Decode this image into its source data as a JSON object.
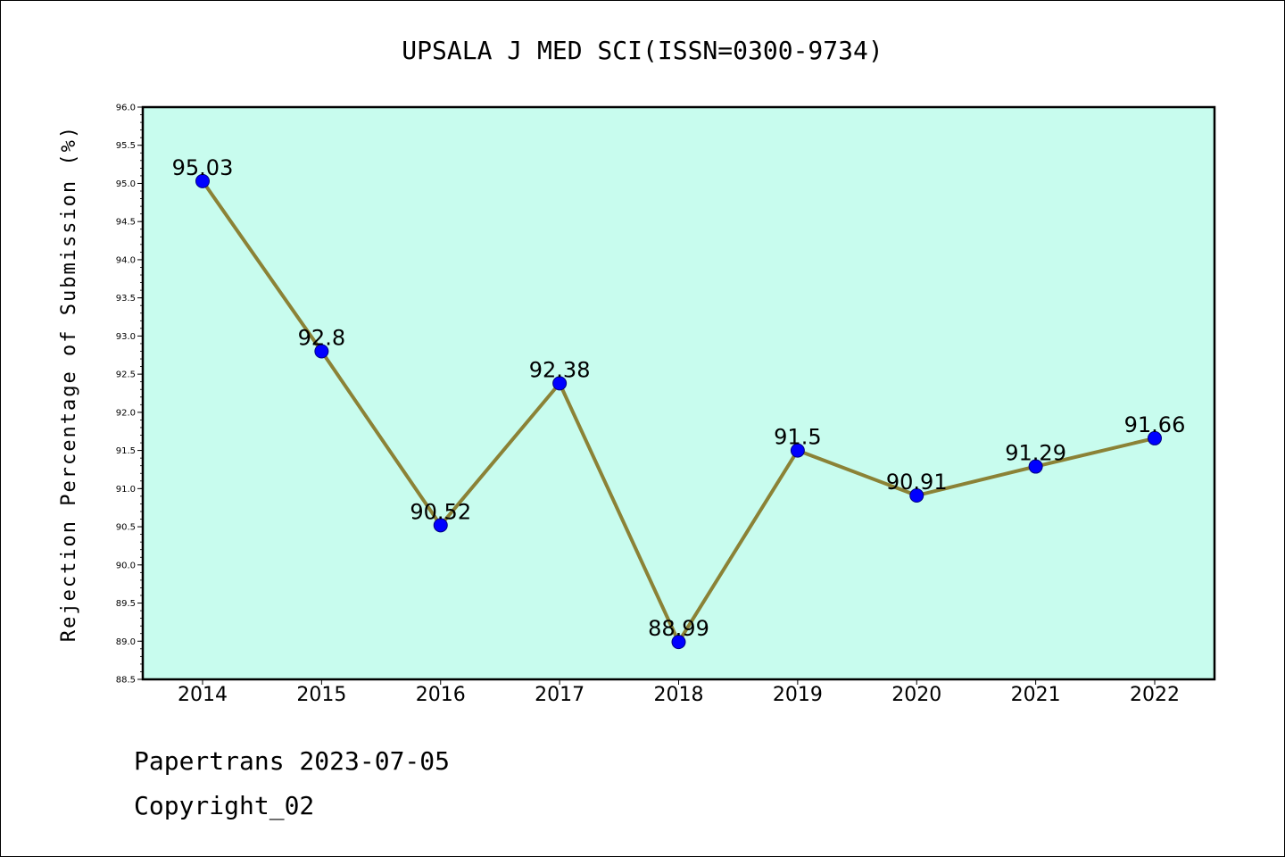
{
  "chart_data": {
    "type": "line",
    "title": "UPSALA J MED SCI(ISSN=0300-9734)",
    "xlabel": "",
    "ylabel": "Rejection Percentage of Submission (%)",
    "categories": [
      "2014",
      "2015",
      "2016",
      "2017",
      "2018",
      "2019",
      "2020",
      "2021",
      "2022"
    ],
    "series": [
      {
        "values": [
          95.03,
          92.8,
          90.52,
          92.38,
          88.99,
          91.5,
          90.91,
          91.29,
          91.66
        ]
      }
    ],
    "data_labels": [
      "95.03",
      "92.8",
      "90.52",
      "92.38",
      "88.99",
      "91.5",
      "90.91",
      "91.29",
      "91.66"
    ],
    "ylim": [
      88.5,
      96.0
    ],
    "yticks": [
      "88.5",
      "89.0",
      "89.5",
      "90.0",
      "90.5",
      "91.0",
      "91.5",
      "92.0",
      "92.5",
      "93.0",
      "93.5",
      "94.0",
      "94.5",
      "95.0",
      "95.5",
      "96.0"
    ],
    "grid": false,
    "legend": "none",
    "colors": {
      "plot_background": "#c8fcee",
      "line": "#8b8236",
      "marker": "#0000ff",
      "marker_edge": "#000080"
    }
  },
  "footer": {
    "line1": "Papertrans 2023-07-05",
    "line2": "Copyright_02"
  }
}
